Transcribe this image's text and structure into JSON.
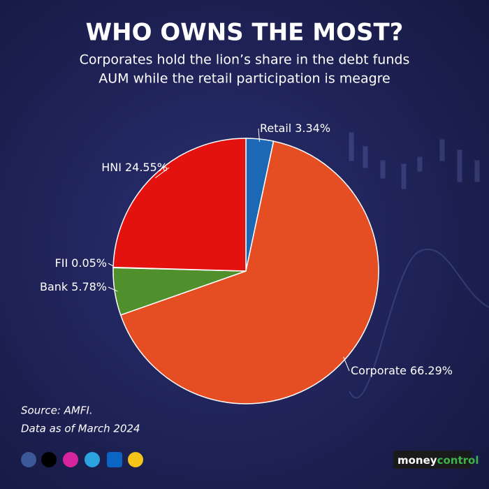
{
  "chart_data": {
    "type": "pie",
    "title": "WHO OWNS THE MOST?",
    "subtitle": [
      "Corporates hold the lion’s share in the debt funds",
      "AUM while the retail participation is meagre"
    ],
    "categories": [
      "Retail",
      "Corporate",
      "Bank",
      "FII",
      "HNI"
    ],
    "values": [
      3.34,
      66.29,
      5.78,
      0.05,
      24.55
    ],
    "value_labels": [
      "3.34%",
      "66.29%",
      "5.78%",
      "0.05%",
      "24.55%"
    ],
    "colors": [
      "#1d68b5",
      "#e54d22",
      "#4f8f2c",
      "#e54d22",
      "#e3120f"
    ],
    "notes": [
      "Source: AMFI.",
      "Data as of March 2024"
    ],
    "brand": [
      "money",
      "control"
    ]
  }
}
